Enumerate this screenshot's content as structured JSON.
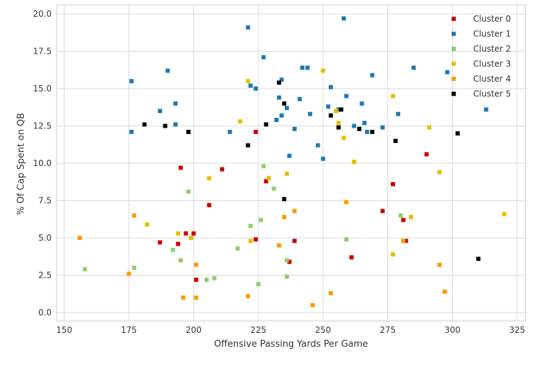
{
  "chart_data": {
    "type": "scatter",
    "xlabel": "Offensive Passing Yards Per Game",
    "ylabel": "% Of Cap Spent on QB",
    "xlim": [
      150,
      325
    ],
    "ylim": [
      0,
      20
    ],
    "x_ticks": [
      "150",
      "175",
      "200",
      "225",
      "250",
      "275",
      "300",
      "325"
    ],
    "y_ticks": [
      "0.0",
      "2.5",
      "5.0",
      "7.5",
      "10.0",
      "12.5",
      "15.0",
      "17.5",
      "20.0"
    ],
    "grid": true,
    "legend_position": "top-right",
    "series": [
      {
        "name": "Cluster 0",
        "color": "#cc0000",
        "points": [
          [
            195,
            9.7
          ],
          [
            211,
            9.6
          ],
          [
            224,
            12.1
          ],
          [
            228,
            8.8
          ],
          [
            206,
            7.2
          ],
          [
            187,
            4.7
          ],
          [
            194,
            4.6
          ],
          [
            197,
            5.3
          ],
          [
            200,
            5.3
          ],
          [
            201,
            2.2
          ],
          [
            224,
            4.9
          ],
          [
            237,
            3.4
          ],
          [
            239,
            4.8
          ],
          [
            261,
            3.7
          ],
          [
            273,
            6.8
          ],
          [
            277,
            8.6
          ],
          [
            281,
            6.2
          ],
          [
            282,
            4.8
          ],
          [
            290,
            10.6
          ]
        ]
      },
      {
        "name": "Cluster 1",
        "color": "#1f77b4",
        "points": [
          [
            176,
            15.5
          ],
          [
            176,
            12.1
          ],
          [
            187,
            13.5
          ],
          [
            190,
            16.2
          ],
          [
            193,
            14.0
          ],
          [
            193,
            12.6
          ],
          [
            214,
            12.1
          ],
          [
            221,
            19.1
          ],
          [
            222,
            15.2
          ],
          [
            224,
            15.0
          ],
          [
            227,
            17.1
          ],
          [
            232,
            12.9
          ],
          [
            233,
            14.4
          ],
          [
            234,
            15.6
          ],
          [
            234,
            13.2
          ],
          [
            236,
            13.7
          ],
          [
            237,
            10.5
          ],
          [
            239,
            12.3
          ],
          [
            241,
            14.3
          ],
          [
            242,
            16.4
          ],
          [
            244,
            16.4
          ],
          [
            245,
            13.3
          ],
          [
            248,
            11.2
          ],
          [
            250,
            10.3
          ],
          [
            252,
            13.8
          ],
          [
            253,
            15.1
          ],
          [
            256,
            13.6
          ],
          [
            258,
            19.7
          ],
          [
            259,
            14.5
          ],
          [
            262,
            12.5
          ],
          [
            265,
            14.0
          ],
          [
            266,
            12.7
          ],
          [
            267,
            12.1
          ],
          [
            269,
            15.9
          ],
          [
            273,
            12.4
          ],
          [
            279,
            13.3
          ],
          [
            285,
            16.4
          ],
          [
            298,
            16.1
          ],
          [
            313,
            13.6
          ]
        ]
      },
      {
        "name": "Cluster 2",
        "color": "#8fce6f",
        "points": [
          [
            158,
            2.9
          ],
          [
            177,
            3.0
          ],
          [
            192,
            4.2
          ],
          [
            195,
            3.5
          ],
          [
            198,
            8.1
          ],
          [
            205,
            2.2
          ],
          [
            208,
            2.3
          ],
          [
            217,
            4.3
          ],
          [
            222,
            5.8
          ],
          [
            225,
            1.9
          ],
          [
            226,
            6.2
          ],
          [
            227,
            9.8
          ],
          [
            231,
            8.3
          ],
          [
            236,
            3.5
          ],
          [
            236,
            2.4
          ],
          [
            259,
            4.9
          ],
          [
            280,
            6.5
          ],
          [
            281,
            4.8
          ]
        ]
      },
      {
        "name": "Cluster 3",
        "color": "#e0c000",
        "points": [
          [
            182,
            5.9
          ],
          [
            194,
            5.3
          ],
          [
            199,
            5.0
          ],
          [
            206,
            9.0
          ],
          [
            218,
            12.8
          ],
          [
            221,
            15.5
          ],
          [
            222,
            4.8
          ],
          [
            229,
            9.0
          ],
          [
            236,
            9.3
          ],
          [
            250,
            16.2
          ],
          [
            255,
            13.5
          ],
          [
            256,
            12.7
          ],
          [
            258,
            11.7
          ],
          [
            262,
            10.1
          ],
          [
            277,
            14.5
          ],
          [
            277,
            3.9
          ],
          [
            284,
            6.4
          ],
          [
            291,
            12.4
          ],
          [
            295,
            9.4
          ],
          [
            320,
            6.6
          ]
        ]
      },
      {
        "name": "Cluster 4",
        "color": "#ff9900",
        "points": [
          [
            156,
            5.0
          ],
          [
            175,
            2.6
          ],
          [
            177,
            6.5
          ],
          [
            196,
            1.0
          ],
          [
            201,
            3.2
          ],
          [
            201,
            1.0
          ],
          [
            221,
            1.1
          ],
          [
            233,
            4.5
          ],
          [
            235,
            6.4
          ],
          [
            239,
            6.8
          ],
          [
            246,
            0.5
          ],
          [
            253,
            1.3
          ],
          [
            259,
            7.4
          ],
          [
            281,
            4.8
          ],
          [
            295,
            3.2
          ],
          [
            297,
            1.4
          ]
        ]
      },
      {
        "name": "Cluster 5",
        "color": "#000000",
        "points": [
          [
            181,
            12.6
          ],
          [
            189,
            12.5
          ],
          [
            198,
            12.1
          ],
          [
            221,
            11.2
          ],
          [
            228,
            12.6
          ],
          [
            233,
            15.4
          ],
          [
            235,
            14.0
          ],
          [
            235,
            7.6
          ],
          [
            253,
            13.2
          ],
          [
            257,
            13.6
          ],
          [
            256,
            12.4
          ],
          [
            264,
            12.3
          ],
          [
            269,
            12.1
          ],
          [
            278,
            11.5
          ],
          [
            302,
            12.0
          ],
          [
            310,
            3.6
          ]
        ]
      }
    ]
  }
}
